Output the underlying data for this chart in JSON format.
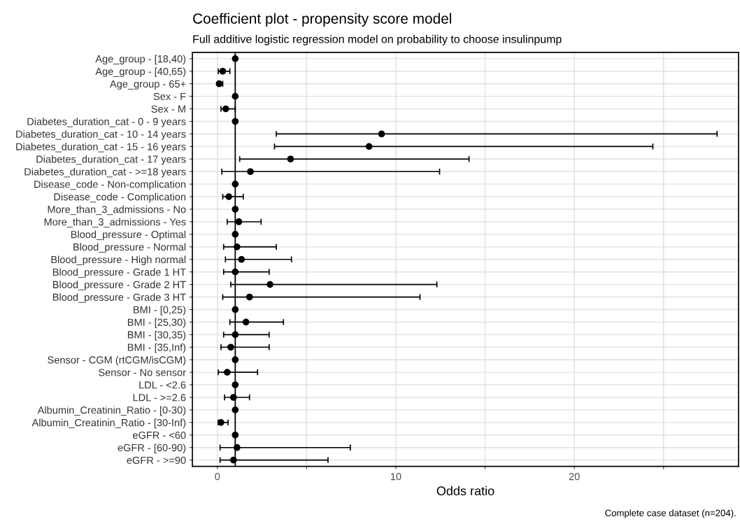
{
  "chart_data": {
    "type": "scatter",
    "orientation": "horizontal",
    "title": "Coefficient plot - propensity score model",
    "subtitle": "Full additive logistic regression model on probability to choose insulinpump",
    "xlabel": "Odds ratio",
    "categories": [
      "Age_group - [18,40)",
      "Age_group - [40,65)",
      "Age_group - 65+",
      "Sex - F",
      "Sex - M",
      "Diabetes_duration_cat - 0 - 9 years",
      "Diabetes_duration_cat - 10 - 14 years",
      "Diabetes_duration_cat - 15 - 16 years",
      "Diabetes_duration_cat - 17 years",
      "Diabetes_duration_cat - >=18 years",
      "Disease_code - Non-complication",
      "Disease_code - Complication",
      "More_than_3_admissions - No",
      "More_than_3_admissions - Yes",
      "Blood_pressure - Optimal",
      "Blood_pressure - Normal",
      "Blood_pressure - High normal",
      "Blood_pressure - Grade 1 HT",
      "Blood_pressure - Grade 2 HT",
      "Blood_pressure - Grade 3 HT",
      "BMI - [0,25)",
      "BMI - [25,30)",
      "BMI - [30,35)",
      "BMI - [35,Inf)",
      "Sensor - CGM (rtCGM/isCGM)",
      "Sensor - No sensor",
      "LDL - <2.6",
      "LDL - >=2.6",
      "Albumin_Creatinin_Ratio - [0-30)",
      "Albumin_Creatinin_Ratio - [30-Inf)",
      "eGFR - <60",
      "eGFR - [60-90)",
      "eGFR - >=90"
    ],
    "series": [
      {
        "color": "#000000",
        "values": [
          1,
          0.3,
          0.1,
          1,
          0.47,
          1,
          9.2,
          8.5,
          4.1,
          1.85,
          1,
          0.64,
          1,
          1.2,
          1,
          1.1,
          1.35,
          1,
          2.95,
          1.8,
          1,
          1.6,
          1,
          0.75,
          1,
          0.55,
          1,
          0.9,
          1,
          0.2,
          1,
          1.1,
          0.9
        ],
        "errors": [
          null,
          [
            0.05,
            0.7
          ],
          [
            0.05,
            0.3
          ],
          null,
          [
            0.2,
            1
          ],
          null,
          [
            3.3,
            28
          ],
          [
            3.2,
            24.4
          ],
          [
            1.25,
            14.1
          ],
          [
            0.25,
            12.45
          ],
          null,
          [
            0.3,
            1.45
          ],
          null,
          [
            0.55,
            2.45
          ],
          null,
          [
            0.35,
            3.3
          ],
          [
            0.45,
            4.15
          ],
          [
            0.35,
            2.9
          ],
          [
            0.75,
            12.3
          ],
          [
            0.3,
            11.35
          ],
          null,
          [
            0.7,
            3.7
          ],
          [
            0.35,
            2.9
          ],
          [
            0.2,
            2.9
          ],
          null,
          [
            0.05,
            2.25
          ],
          null,
          [
            0.4,
            1.8
          ],
          null,
          [
            0.05,
            0.6
          ],
          null,
          [
            0.15,
            7.45
          ],
          [
            0.15,
            6.2
          ]
        ]
      }
    ],
    "xlim": [
      -1.4,
      29.2
    ],
    "xticks": [
      0,
      {
        "value": 5,
        "label": null
      },
      10,
      {
        "value": 15,
        "label": null
      },
      20,
      {
        "value": 25,
        "label": null
      }
    ],
    "grid": true,
    "marker": "circle",
    "ref_lines": [
      {
        "axis": "x",
        "value": 1,
        "color": "#000000"
      }
    ],
    "annotations": [
      "Complete case dataset (n=204)."
    ]
  }
}
